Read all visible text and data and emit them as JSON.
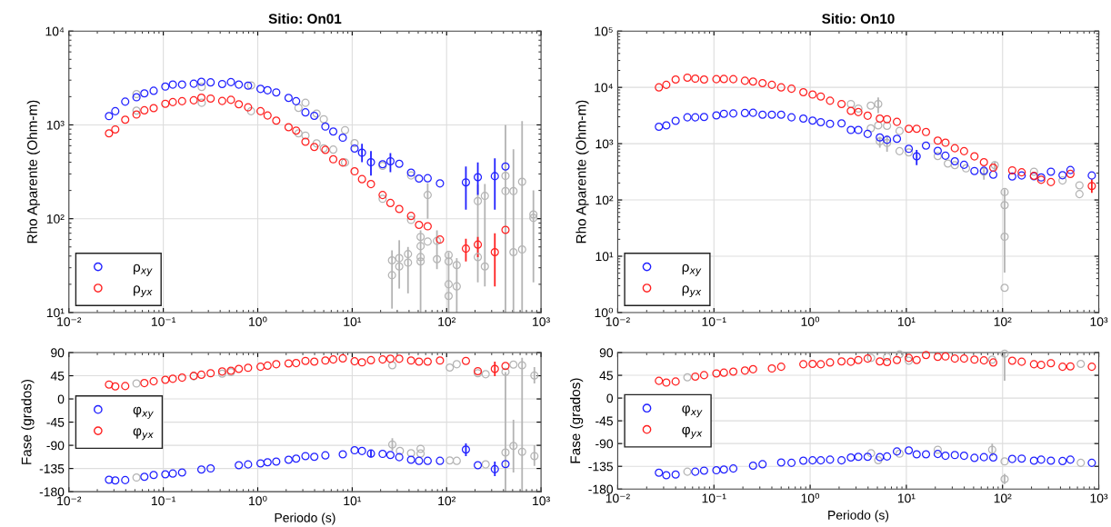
{
  "chart_data": [
    {
      "type": "scatter",
      "title": "Sitio: On01",
      "ylabel": "Rho Aparente (Ohm-m)",
      "log": "xy",
      "grid": true,
      "legend": "bottom left",
      "marker": "circle",
      "xlim": [
        0.01,
        1000
      ],
      "xticks": [
        {
          "value": 0.01,
          "label": "10⁻²"
        },
        {
          "value": 0.1,
          "label": "10⁻¹"
        },
        {
          "value": 1,
          "label": "10⁰"
        },
        {
          "value": 10,
          "label": "10¹"
        },
        {
          "value": 100,
          "label": "10²"
        },
        {
          "value": 1000,
          "label": "10³"
        }
      ],
      "ylim": [
        10,
        10000
      ],
      "yticks": [
        {
          "value": 10,
          "label": "10¹"
        },
        {
          "value": 100,
          "label": "10²"
        },
        {
          "value": 1000,
          "label": "10³"
        },
        {
          "value": 10000,
          "label": "10⁴"
        }
      ],
      "series": [
        {
          "color": "#b4b4b4",
          "x": [
            0.052,
            0.052,
            0.255,
            0.255,
            0.85,
            0.85,
            2.7,
            2.7,
            3.2,
            3.2,
            4.2,
            4.2,
            5.0,
            5.0,
            6.3,
            8.4,
            8.4,
            10.6,
            21,
            21,
            42,
            42,
            26.4,
            26.4,
            31.5,
            31.5,
            39,
            39,
            53,
            53,
            53,
            53,
            63,
            63,
            79,
            79,
            105,
            105,
            105,
            105,
            128,
            128,
            214,
            214,
            254,
            254,
            420,
            420,
            510,
            510,
            630,
            630,
            830,
            830
          ],
          "values": [
            2130,
            1420,
            2540,
            1720,
            2640,
            1400,
            1520,
            813,
            1720,
            770,
            1320,
            635,
            1150,
            563,
            545,
            880,
            397,
            640,
            366,
            163,
            289,
            97,
            36,
            25,
            38,
            31,
            42,
            34,
            64,
            51,
            39,
            35,
            179,
            57,
            58,
            37,
            41,
            35,
            20,
            15,
            32,
            19,
            154,
            39,
            175,
            31,
            286,
            197,
            197,
            44,
            248,
            47,
            111,
            102
          ],
          "errors": [
            null,
            null,
            null,
            null,
            null,
            null,
            null,
            null,
            null,
            null,
            null,
            null,
            null,
            null,
            null,
            null,
            null,
            null,
            null,
            null,
            null,
            null,
            null,
            [
              11,
              46
            ],
            null,
            [
              18,
              59
            ],
            null,
            [
              16,
              50
            ],
            null,
            null,
            null,
            [
              10,
              75
            ],
            [
              100,
              240
            ],
            null,
            null,
            [
              29,
              75
            ],
            null,
            null,
            null,
            [
              10,
              44
            ],
            null,
            [
              10,
              38
            ],
            null,
            [
              21,
              230
            ],
            null,
            [
              19,
              235
            ],
            null,
            [
              10,
              1000
            ],
            null,
            [
              10,
              550
            ],
            null,
            [
              10,
              1100
            ],
            null,
            [
              21,
              200
            ]
          ]
        },
        {
          "name": "ρ$_{xy}$",
          "color": "#2020ff",
          "x": [
            0.0266,
            0.031,
            0.0395,
            0.052,
            0.063,
            0.079,
            0.105,
            0.126,
            0.158,
            0.21,
            0.253,
            0.317,
            0.42,
            0.52,
            0.63,
            0.79,
            1.07,
            1.27,
            1.57,
            2.12,
            2.55,
            3.2,
            3.97,
            5.2,
            6.3,
            7.95,
            10.6,
            12.7,
            15.8,
            21,
            25.4,
            31.5,
            42,
            51,
            63,
            85,
            160,
            214,
            324,
            420
          ],
          "values": [
            1240,
            1400,
            1770,
            1970,
            2170,
            2310,
            2560,
            2690,
            2690,
            2750,
            2880,
            2840,
            2730,
            2860,
            2690,
            2620,
            2420,
            2340,
            2220,
            1940,
            1790,
            1360,
            1250,
            960,
            850,
            730,
            560,
            505,
            400,
            381,
            410,
            385,
            310,
            268,
            270,
            238,
            244,
            277,
            284,
            360
          ],
          "errors": [
            null,
            null,
            null,
            null,
            null,
            null,
            null,
            null,
            null,
            null,
            null,
            null,
            null,
            null,
            null,
            null,
            null,
            null,
            null,
            null,
            null,
            null,
            null,
            null,
            null,
            null,
            null,
            [
              400,
              630
            ],
            [
              288,
              525
            ],
            null,
            [
              313,
              500
            ],
            null,
            null,
            null,
            null,
            null,
            [
              125,
              360
            ],
            [
              179,
              398
            ],
            [
              125,
              440
            ],
            null
          ]
        },
        {
          "name": "ρ$_{yx}$",
          "color": "#ff2020",
          "x": [
            0.0266,
            0.031,
            0.0395,
            0.052,
            0.063,
            0.079,
            0.105,
            0.126,
            0.158,
            0.21,
            0.253,
            0.317,
            0.42,
            0.52,
            0.63,
            0.79,
            1.07,
            1.27,
            1.57,
            2.12,
            2.55,
            3.2,
            3.97,
            5.2,
            6.3,
            7.95,
            10.6,
            12.7,
            15.8,
            21,
            25.4,
            31.5,
            42,
            51,
            63,
            85,
            160,
            214,
            324,
            420
          ],
          "values": [
            813,
            895,
            1136,
            1290,
            1430,
            1510,
            1680,
            1750,
            1790,
            1830,
            1950,
            1910,
            1800,
            1850,
            1660,
            1540,
            1400,
            1260,
            1110,
            945,
            870,
            661,
            582,
            542,
            430,
            397,
            320,
            264,
            234,
            179,
            147,
            127,
            107,
            86,
            83,
            60,
            48,
            53,
            44,
            76
          ],
          "errors": [
            null,
            null,
            null,
            null,
            null,
            null,
            null,
            null,
            null,
            null,
            null,
            null,
            null,
            null,
            null,
            null,
            null,
            null,
            null,
            null,
            null,
            null,
            null,
            null,
            null,
            null,
            null,
            null,
            null,
            null,
            null,
            null,
            null,
            null,
            null,
            null,
            [
              35,
              61
            ],
            [
              39,
              64
            ],
            [
              19,
              70
            ],
            null
          ]
        }
      ]
    },
    {
      "type": "scatter",
      "title": "Sitio: On10",
      "ylabel": "Rho Aparente (Ohm-m)",
      "log": "xy",
      "grid": true,
      "legend": "bottom left",
      "marker": "circle",
      "xlim": [
        0.01,
        1000
      ],
      "xticks": [
        {
          "value": 0.01,
          "label": "10⁻²"
        },
        {
          "value": 0.1,
          "label": "10⁻¹"
        },
        {
          "value": 1,
          "label": "10⁰"
        },
        {
          "value": 10,
          "label": "10¹"
        },
        {
          "value": 100,
          "label": "10²"
        },
        {
          "value": 1000,
          "label": "10³"
        }
      ],
      "ylim": [
        1,
        100000
      ],
      "yticks": [
        {
          "value": 1,
          "label": "10⁰"
        },
        {
          "value": 10,
          "label": "10¹"
        },
        {
          "value": 100,
          "label": "10²"
        },
        {
          "value": 1000,
          "label": "10³"
        },
        {
          "value": 10000,
          "label": "10⁴"
        },
        {
          "value": 100000,
          "label": "10⁵"
        }
      ],
      "series": [
        {
          "color": "#b4b4b4",
          "x": [
            2.65,
            3.17,
            4.27,
            5.1,
            4.27,
            5.1,
            5.3,
            6.3,
            6.3,
            8.5,
            8.5,
            10.6,
            21.2,
            27,
            31.9,
            41.7,
            64,
            83,
            105,
            105,
            105,
            105,
            212,
            420,
            630,
            630
          ],
          "values": [
            5070,
            4210,
            4740,
            5070,
            1870,
            2110,
            1100,
            2080,
            1030,
            1680,
            736,
            698,
            603,
            443,
            415,
            364,
            318,
            415,
            138,
            81,
            22.2,
            2.75,
            318,
            222,
            182,
            127
          ],
          "errors": [
            null,
            null,
            null,
            [
              3490,
              6640
            ],
            null,
            null,
            [
              850,
              1330
            ],
            null,
            [
              720,
              1400
            ],
            null,
            null,
            null,
            null,
            null,
            null,
            null,
            [
              230,
              350
            ],
            [
              340,
              480
            ],
            null,
            null,
            [
              5.1,
              155
            ],
            null,
            null,
            null,
            null,
            null
          ]
        },
        {
          "name": "ρ$_{xy}$",
          "color": "#2020ff",
          "x": [
            0.0268,
            0.032,
            0.04,
            0.053,
            0.064,
            0.079,
            0.106,
            0.127,
            0.159,
            0.21,
            0.255,
            0.32,
            0.4,
            0.5,
            0.64,
            0.85,
            1.06,
            1.29,
            1.61,
            2.12,
            2.65,
            3.17,
            3.96,
            5.3,
            6.3,
            7.98,
            10.6,
            12.8,
            16,
            21.2,
            25.5,
            31.9,
            39.8,
            51,
            64,
            80,
            126,
            158,
            212,
            252,
            318,
            420,
            507,
            846
          ],
          "values": [
            2000,
            2110,
            2540,
            2940,
            2940,
            2980,
            3180,
            3400,
            3440,
            3500,
            3540,
            3270,
            3270,
            3270,
            2940,
            2790,
            2570,
            2410,
            2250,
            2290,
            1750,
            1750,
            1490,
            1290,
            1170,
            1220,
            809,
            596,
            923,
            746,
            611,
            487,
            421,
            327,
            331,
            282,
            261,
            272,
            264,
            251,
            318,
            275,
            340,
            272
          ],
          "errors": [
            null,
            null,
            null,
            null,
            null,
            null,
            null,
            null,
            null,
            null,
            null,
            null,
            null,
            null,
            null,
            null,
            null,
            null,
            null,
            null,
            null,
            null,
            null,
            null,
            null,
            null,
            null,
            [
              415,
              776
            ],
            null,
            null,
            null,
            null,
            null,
            null,
            null,
            null,
            null,
            null,
            null,
            null,
            null,
            null,
            null,
            null
          ]
        },
        {
          "name": "ρ$_{yx}$",
          "color": "#ff2020",
          "x": [
            0.0268,
            0.032,
            0.04,
            0.053,
            0.064,
            0.079,
            0.106,
            0.127,
            0.159,
            0.21,
            0.255,
            0.32,
            0.4,
            0.5,
            0.64,
            0.85,
            1.06,
            1.29,
            1.61,
            2.12,
            2.65,
            3.17,
            3.96,
            5.3,
            6.3,
            7.98,
            10.6,
            12.8,
            16,
            21.2,
            25.5,
            31.9,
            39.8,
            51,
            64,
            80,
            126,
            158,
            212,
            252,
            318,
            420,
            507,
            846
          ],
          "values": [
            10000,
            11100,
            13800,
            14900,
            14300,
            13800,
            14000,
            14100,
            14000,
            13100,
            12700,
            11900,
            11100,
            10000,
            9480,
            8190,
            7460,
            6890,
            5790,
            5070,
            3830,
            3640,
            3140,
            2790,
            2720,
            2440,
            1840,
            1840,
            1610,
            1130,
            1040,
            829,
            736,
            595,
            469,
            374,
            336,
            310,
            268,
            228,
            208,
            null,
            290,
            177
          ],
          "errors": [
            null,
            null,
            null,
            null,
            null,
            null,
            null,
            null,
            null,
            null,
            null,
            null,
            null,
            null,
            null,
            null,
            null,
            null,
            null,
            null,
            null,
            null,
            null,
            null,
            null,
            null,
            null,
            null,
            null,
            null,
            null,
            null,
            null,
            null,
            null,
            null,
            null,
            null,
            null,
            null,
            null,
            null,
            null,
            [
              134,
              234
            ]
          ]
        }
      ]
    },
    {
      "type": "scatter",
      "xlabel": "Periodo (s)",
      "ylabel": "Fase (grados)",
      "log": "x",
      "grid": true,
      "legend": "left",
      "marker": "circle",
      "xlim": [
        0.01,
        1000
      ],
      "xticks": [
        {
          "value": 0.01,
          "label": "10⁻²"
        },
        {
          "value": 0.1,
          "label": "10⁻¹"
        },
        {
          "value": 1,
          "label": "10⁰"
        },
        {
          "value": 10,
          "label": "10¹"
        },
        {
          "value": 100,
          "label": "10²"
        },
        {
          "value": 1000,
          "label": "10³"
        }
      ],
      "ylim": [
        -180,
        90
      ],
      "yticks": [
        {
          "value": -180,
          "label": "-180"
        },
        {
          "value": -135,
          "label": "-135"
        },
        {
          "value": -90,
          "label": "-90"
        },
        {
          "value": -45,
          "label": "-45"
        },
        0,
        45,
        90
      ],
      "series": [
        {
          "color": "#b4b4b4",
          "x": [
            0.052,
            0.052,
            0.21,
            0.42,
            0.52,
            26.6,
            26.6,
            32,
            42,
            53,
            53,
            108,
            108,
            128,
            128,
            214,
            259,
            259,
            420,
            420,
            510,
            510,
            630,
            630,
            850,
            850
          ],
          "values": [
            30,
            -152.5,
            44,
            49,
            52,
            65.3,
            -88.4,
            -101,
            -105.3,
            -96.8,
            -106,
            61,
            -119.4,
            67.4,
            -120.1,
            50,
            48,
            -127,
            52.6,
            -103.9,
            66.7,
            -91.2,
            65.3,
            -102.5,
            45.6,
            -110.9
          ],
          "errors": [
            null,
            null,
            null,
            null,
            null,
            null,
            [
              -101,
              -76
            ],
            null,
            null,
            null,
            null,
            null,
            null,
            null,
            null,
            null,
            null,
            null,
            null,
            [
              -180,
              52
            ],
            null,
            [
              -142.7,
              -40.4
            ],
            [
              -180,
              80
            ],
            null,
            [
              30,
              62
            ],
            [
              -130,
              -90
            ]
          ]
        },
        {
          "name": "φ$_{xy}$",
          "color": "#2020ff",
          "x": [
            0.0266,
            0.031,
            0.0395,
            0.052,
            0.063,
            0.079,
            0.105,
            0.126,
            0.158,
            0.21,
            0.253,
            0.317,
            0.42,
            0.52,
            0.63,
            0.79,
            1.07,
            1.27,
            1.57,
            2.12,
            2.55,
            3.2,
            3.97,
            5.2,
            6.3,
            7.95,
            10.6,
            12.7,
            15.8,
            21,
            25.4,
            31.5,
            42,
            51,
            63,
            85,
            160,
            214,
            324,
            420
          ],
          "values": [
            -156.8,
            -158.2,
            -157.5,
            null,
            -151.1,
            -147.6,
            -146.2,
            -144.8,
            -142.7,
            null,
            -137,
            -134.9,
            null,
            null,
            -128.6,
            -127.1,
            -125,
            -122.9,
            -121.5,
            -118,
            -115.9,
            -110.9,
            -112.3,
            -109.5,
            null,
            -107.4,
            -99.6,
            -101,
            -106,
            -106.7,
            -108.8,
            -113,
            -118,
            -120.1,
            -120.1,
            -120.1,
            -98.2,
            -128.6,
            -136.3,
            -126.4
          ],
          "errors": [
            null,
            null,
            null,
            null,
            null,
            null,
            null,
            null,
            null,
            null,
            null,
            null,
            null,
            null,
            null,
            null,
            null,
            null,
            null,
            null,
            null,
            null,
            null,
            null,
            null,
            null,
            null,
            null,
            [
              -113,
              -99
            ],
            null,
            null,
            null,
            null,
            null,
            null,
            null,
            [
              -110.9,
              -86.2
            ],
            null,
            [
              -149.7,
              -121.5
            ],
            null
          ]
        },
        {
          "name": "φ$_{yx}$",
          "color": "#ff2020",
          "x": [
            0.0266,
            0.031,
            0.0395,
            0.052,
            0.063,
            0.079,
            0.105,
            0.126,
            0.158,
            0.21,
            0.253,
            0.317,
            0.42,
            0.52,
            0.63,
            0.79,
            1.07,
            1.27,
            1.57,
            2.12,
            2.55,
            3.2,
            3.97,
            5.2,
            6.3,
            7.95,
            10.6,
            12.7,
            15.8,
            21,
            25.4,
            31.5,
            42,
            51,
            63,
            85,
            160,
            214,
            324,
            420
          ],
          "values": [
            28,
            24.4,
            25,
            null,
            30.8,
            34.3,
            37.1,
            39.2,
            41.4,
            44.9,
            47,
            49.8,
            53.3,
            54.7,
            58.3,
            60.4,
            62.5,
            64.6,
            67.4,
            69,
            69.6,
            73.8,
            72.4,
            74.5,
            76.6,
            78.7,
            73.1,
            71,
            75.2,
            76.6,
            78,
            78,
            74.5,
            72.4,
            72.4,
            74.5,
            73.8,
            54,
            58.3,
            64
          ],
          "errors": [
            null,
            null,
            null,
            null,
            null,
            null,
            null,
            null,
            null,
            null,
            null,
            null,
            null,
            null,
            null,
            null,
            null,
            null,
            null,
            null,
            null,
            null,
            null,
            null,
            null,
            null,
            null,
            null,
            null,
            null,
            null,
            null,
            null,
            null,
            null,
            null,
            null,
            null,
            [
              44.2,
              72.4
            ],
            null
          ]
        }
      ]
    },
    {
      "type": "scatter",
      "xlabel": "Periodo (s)",
      "ylabel": "Fase (grados)",
      "log": "x",
      "grid": true,
      "legend": "left",
      "marker": "circle",
      "xlim": [
        0.01,
        1000
      ],
      "xticks": [
        {
          "value": 0.01,
          "label": "10⁻²"
        },
        {
          "value": 0.1,
          "label": "10⁻¹"
        },
        {
          "value": 1,
          "label": "10⁰"
        },
        {
          "value": 10,
          "label": "10¹"
        },
        {
          "value": 100,
          "label": "10²"
        },
        {
          "value": 1000,
          "label": "10³"
        }
      ],
      "ylim": [
        -180,
        90
      ],
      "yticks": [
        {
          "value": -180,
          "label": "-180"
        },
        {
          "value": -135,
          "label": "-135"
        },
        {
          "value": -90,
          "label": "-90"
        },
        {
          "value": -45,
          "label": "-45"
        },
        0,
        45,
        90
      ],
      "series": [
        {
          "color": "#b4b4b4",
          "x": [
            0.053,
            0.053,
            4.3,
            4.3,
            5.1,
            6.3,
            8.5,
            8.5,
            10.6,
            21.2,
            78,
            78,
            105,
            105,
            105,
            650,
            650
          ],
          "values": [
            41,
            -145.6,
            79.5,
            -109.2,
            -123,
            81.6,
            86.5,
            -110,
            73.9,
            -102.2,
            76,
            -102.2,
            87.9,
            -125.3,
            -160.2,
            67.6,
            -128.1
          ],
          "errors": [
            null,
            null,
            null,
            null,
            null,
            null,
            null,
            null,
            null,
            null,
            null,
            [
              -115,
              -90
            ],
            [
              34.1,
              90
            ],
            null,
            [
              -170,
              -150
            ],
            null,
            null
          ]
        },
        {
          "name": "φ$_{xy}$",
          "color": "#2020ff",
          "x": [
            0.0268,
            0.032,
            0.04,
            0.053,
            0.064,
            0.079,
            0.106,
            0.127,
            0.159,
            0.21,
            0.255,
            0.32,
            0.4,
            0.5,
            0.64,
            0.85,
            1.06,
            1.29,
            1.61,
            2.12,
            2.65,
            3.17,
            3.96,
            5.3,
            6.3,
            7.98,
            10.6,
            12.8,
            16,
            21.2,
            25.5,
            31.9,
            39.8,
            51,
            64,
            80,
            126,
            158,
            212,
            252,
            318,
            420,
            507,
            846
          ],
          "values": [
            -147.7,
            -152.6,
            -151.2,
            null,
            -145.6,
            -143.5,
            -142.8,
            -141.4,
            -139.3,
            null,
            -133.7,
            -130.9,
            null,
            -127.4,
            -128.1,
            -123.9,
            -123.2,
            -123.2,
            -121.8,
            -123.2,
            -117.6,
            -116.2,
            -116.2,
            -116.9,
            -115.5,
            -105.7,
            -103.6,
            -111.3,
            -111.3,
            -110.6,
            -114.1,
            -112.7,
            -114.1,
            -118.3,
            -116.9,
            -117.6,
            -120.4,
            -119.7,
            -123.9,
            -121.8,
            -123.9,
            -124.6,
            -121.8,
            -128.1
          ]
        },
        {
          "name": "φ$_{yx}$",
          "color": "#ff2020",
          "x": [
            0.0268,
            0.032,
            0.04,
            0.053,
            0.064,
            0.079,
            0.106,
            0.127,
            0.159,
            0.21,
            0.255,
            0.32,
            0.4,
            0.5,
            0.64,
            0.85,
            1.06,
            1.29,
            1.61,
            2.12,
            2.65,
            3.17,
            3.96,
            5.3,
            6.3,
            7.98,
            10.6,
            12.8,
            16,
            21.2,
            25.5,
            31.9,
            39.8,
            51,
            64,
            80,
            126,
            158,
            212,
            252,
            318,
            420,
            507,
            846
          ],
          "values": [
            34.1,
            30.6,
            32.7,
            null,
            42.5,
            45.3,
            48.8,
            50.2,
            52.3,
            54.4,
            57.1,
            null,
            58.5,
            62,
            null,
            66.9,
            67.6,
            66.9,
            70.4,
            72.5,
            71.8,
            75.3,
            78.1,
            72.5,
            71.1,
            75.3,
            79.5,
            75.3,
            85.1,
            81.6,
            82.3,
            78.1,
            78.1,
            76,
            74.5,
            70.4,
            73.9,
            71.8,
            66.9,
            65.5,
            69,
            62,
            62.7,
            62
          ]
        }
      ]
    }
  ]
}
